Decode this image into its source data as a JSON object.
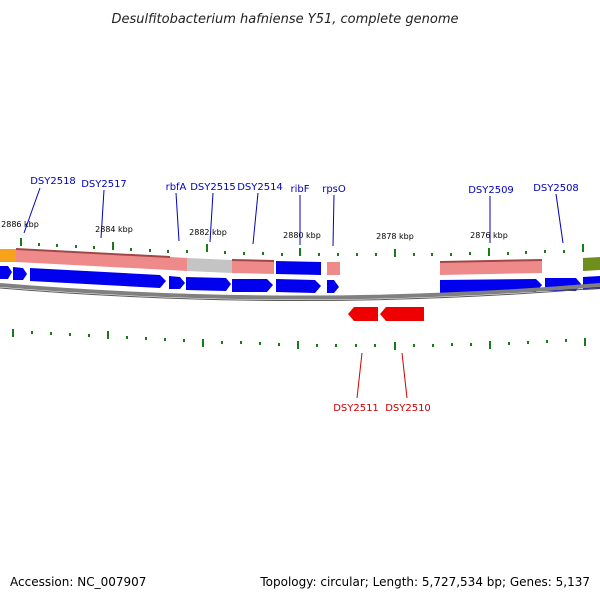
{
  "title": "Desulfitobacterium hafniense Y51, complete genome",
  "footer": {
    "accession": "Accession: NC_007907",
    "summary": "Topology: circular; Length: 5,727,534 bp; Genes: 5,137"
  },
  "colors": {
    "forward_gene": "#0000ee",
    "reverse_gene": "#ee0000",
    "forward_label": "#0000bb",
    "reverse_label": "#cc0000",
    "tick": "#1a7a1a",
    "backbone": "#808080"
  },
  "scale_labels": [
    "2886 kbp",
    "2884 kbp",
    "2882 kbp",
    "2880 kbp",
    "2878 kbp",
    "2876 kbp"
  ],
  "forward_labels": [
    "DSY2518",
    "DSY2517",
    "rbfA",
    "DSY2515",
    "DSY2514",
    "ribF",
    "rpsO",
    "DSY2509",
    "DSY2508"
  ],
  "reverse_labels": [
    "DSY2511",
    "DSY2510"
  ]
}
